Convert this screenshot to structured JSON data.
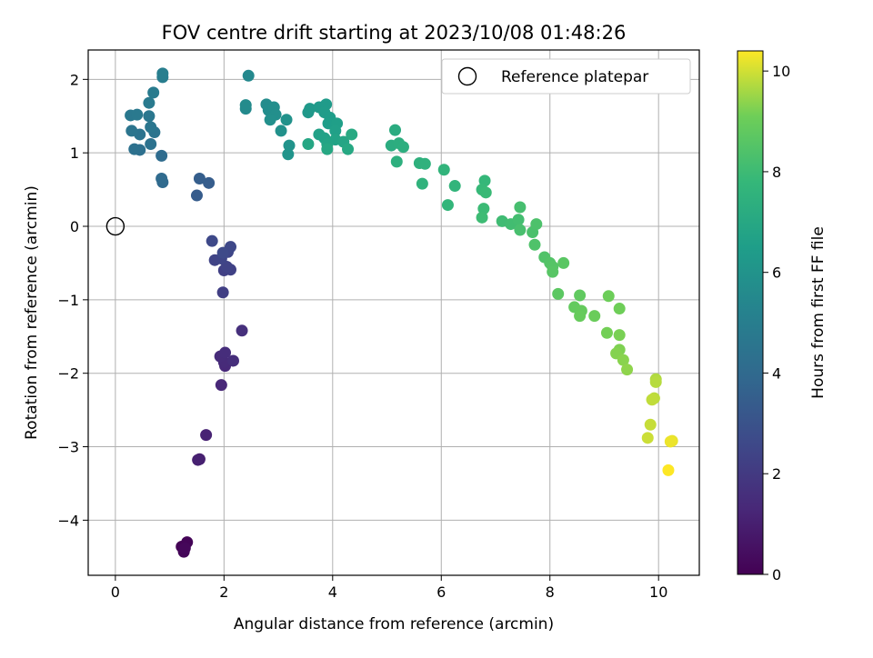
{
  "chart_data": {
    "type": "scatter",
    "title": "FOV centre drift starting at 2023/10/08 01:48:26",
    "xlabel": "Angular distance from reference (arcmin)",
    "ylabel": "Rotation from reference (arcmin)",
    "xlim": [
      -0.5,
      10.75
    ],
    "ylim": [
      -4.75,
      2.4
    ],
    "x_ticks": [
      0,
      2,
      4,
      6,
      8,
      10
    ],
    "y_ticks": [
      -4,
      -3,
      -2,
      -1,
      0,
      1,
      2
    ],
    "grid": true,
    "colormap": "viridis",
    "colorbar": {
      "label": "Hours from first FF file",
      "range": [
        0,
        10.4
      ],
      "ticks": [
        0,
        2,
        4,
        6,
        8,
        10
      ]
    },
    "legend": {
      "position": "top-right",
      "entries": [
        "Reference platepar"
      ]
    },
    "reference_point": {
      "x": 0,
      "y": 0
    },
    "points": [
      {
        "x": 1.22,
        "y": -4.36,
        "h": 0.05
      },
      {
        "x": 1.32,
        "y": -4.3,
        "h": 0.1
      },
      {
        "x": 1.26,
        "y": -4.43,
        "h": 0.15
      },
      {
        "x": 1.28,
        "y": -4.38,
        "h": 0.2
      },
      {
        "x": 1.55,
        "y": -3.17,
        "h": 1.0
      },
      {
        "x": 1.52,
        "y": -3.18,
        "h": 1.05
      },
      {
        "x": 1.67,
        "y": -2.84,
        "h": 1.15
      },
      {
        "x": 1.95,
        "y": -2.16,
        "h": 1.3
      },
      {
        "x": 2.02,
        "y": -1.9,
        "h": 1.35
      },
      {
        "x": 2.0,
        "y": -1.85,
        "h": 1.4
      },
      {
        "x": 1.93,
        "y": -1.77,
        "h": 1.45
      },
      {
        "x": 2.02,
        "y": -1.72,
        "h": 1.5
      },
      {
        "x": 2.17,
        "y": -1.83,
        "h": 1.55
      },
      {
        "x": 2.33,
        "y": -1.42,
        "h": 1.6
      },
      {
        "x": 1.98,
        "y": -0.9,
        "h": 2.2
      },
      {
        "x": 2.0,
        "y": -0.6,
        "h": 2.25
      },
      {
        "x": 2.12,
        "y": -0.59,
        "h": 2.3
      },
      {
        "x": 2.05,
        "y": -0.55,
        "h": 2.35
      },
      {
        "x": 1.83,
        "y": -0.46,
        "h": 2.4
      },
      {
        "x": 1.95,
        "y": -0.44,
        "h": 2.45
      },
      {
        "x": 2.07,
        "y": -0.35,
        "h": 2.5
      },
      {
        "x": 2.12,
        "y": -0.28,
        "h": 2.55
      },
      {
        "x": 1.78,
        "y": -0.2,
        "h": 2.6
      },
      {
        "x": 1.98,
        "y": -0.36,
        "h": 2.65
      },
      {
        "x": 1.5,
        "y": 0.42,
        "h": 3.4
      },
      {
        "x": 1.72,
        "y": 0.59,
        "h": 3.45
      },
      {
        "x": 1.55,
        "y": 0.65,
        "h": 3.5
      },
      {
        "x": 0.87,
        "y": 0.6,
        "h": 4.0
      },
      {
        "x": 0.85,
        "y": 0.65,
        "h": 4.05
      },
      {
        "x": 0.85,
        "y": 0.96,
        "h": 4.1
      },
      {
        "x": 0.45,
        "y": 1.04,
        "h": 4.3
      },
      {
        "x": 0.35,
        "y": 1.05,
        "h": 4.35
      },
      {
        "x": 0.65,
        "y": 1.12,
        "h": 4.4
      },
      {
        "x": 0.45,
        "y": 1.25,
        "h": 4.45
      },
      {
        "x": 0.72,
        "y": 1.28,
        "h": 4.5
      },
      {
        "x": 0.3,
        "y": 1.3,
        "h": 4.55
      },
      {
        "x": 0.65,
        "y": 1.35,
        "h": 4.6
      },
      {
        "x": 0.62,
        "y": 1.5,
        "h": 4.65
      },
      {
        "x": 0.28,
        "y": 1.51,
        "h": 4.7
      },
      {
        "x": 0.4,
        "y": 1.52,
        "h": 4.75
      },
      {
        "x": 0.62,
        "y": 1.68,
        "h": 4.8
      },
      {
        "x": 0.7,
        "y": 1.82,
        "h": 4.85
      },
      {
        "x": 0.87,
        "y": 2.03,
        "h": 4.95
      },
      {
        "x": 0.87,
        "y": 2.08,
        "h": 5.0
      },
      {
        "x": 2.45,
        "y": 2.05,
        "h": 5.5
      },
      {
        "x": 2.4,
        "y": 1.6,
        "h": 5.55
      },
      {
        "x": 2.4,
        "y": 1.65,
        "h": 5.6
      },
      {
        "x": 2.78,
        "y": 1.66,
        "h": 5.65
      },
      {
        "x": 2.82,
        "y": 1.58,
        "h": 5.7
      },
      {
        "x": 2.92,
        "y": 1.62,
        "h": 5.75
      },
      {
        "x": 2.95,
        "y": 1.52,
        "h": 5.8
      },
      {
        "x": 2.85,
        "y": 1.45,
        "h": 5.85
      },
      {
        "x": 3.05,
        "y": 1.3,
        "h": 5.9
      },
      {
        "x": 3.15,
        "y": 1.45,
        "h": 5.95
      },
      {
        "x": 3.2,
        "y": 1.1,
        "h": 6.0
      },
      {
        "x": 3.18,
        "y": 0.98,
        "h": 6.05
      },
      {
        "x": 3.55,
        "y": 1.55,
        "h": 6.2
      },
      {
        "x": 3.58,
        "y": 1.6,
        "h": 6.25
      },
      {
        "x": 3.75,
        "y": 1.62,
        "h": 6.3
      },
      {
        "x": 3.88,
        "y": 1.66,
        "h": 6.35
      },
      {
        "x": 3.85,
        "y": 1.55,
        "h": 6.4
      },
      {
        "x": 3.95,
        "y": 1.48,
        "h": 6.45
      },
      {
        "x": 3.92,
        "y": 1.4,
        "h": 6.5
      },
      {
        "x": 4.08,
        "y": 1.4,
        "h": 6.55
      },
      {
        "x": 4.05,
        "y": 1.3,
        "h": 6.6
      },
      {
        "x": 3.75,
        "y": 1.25,
        "h": 6.65
      },
      {
        "x": 3.85,
        "y": 1.2,
        "h": 6.7
      },
      {
        "x": 4.05,
        "y": 1.18,
        "h": 6.75
      },
      {
        "x": 3.9,
        "y": 1.12,
        "h": 6.8
      },
      {
        "x": 4.2,
        "y": 1.15,
        "h": 6.85
      },
      {
        "x": 3.55,
        "y": 1.12,
        "h": 6.9
      },
      {
        "x": 3.9,
        "y": 1.05,
        "h": 6.95
      },
      {
        "x": 4.28,
        "y": 1.05,
        "h": 7.0
      },
      {
        "x": 4.35,
        "y": 1.25,
        "h": 7.05
      },
      {
        "x": 5.15,
        "y": 1.31,
        "h": 7.2
      },
      {
        "x": 5.08,
        "y": 1.1,
        "h": 7.25
      },
      {
        "x": 5.22,
        "y": 1.13,
        "h": 7.3
      },
      {
        "x": 5.3,
        "y": 1.08,
        "h": 7.35
      },
      {
        "x": 5.18,
        "y": 0.88,
        "h": 7.4
      },
      {
        "x": 5.6,
        "y": 0.86,
        "h": 7.45
      },
      {
        "x": 5.7,
        "y": 0.85,
        "h": 7.5
      },
      {
        "x": 5.65,
        "y": 0.58,
        "h": 7.55
      },
      {
        "x": 6.05,
        "y": 0.77,
        "h": 7.6
      },
      {
        "x": 6.25,
        "y": 0.55,
        "h": 7.65
      },
      {
        "x": 6.12,
        "y": 0.29,
        "h": 7.7
      },
      {
        "x": 6.8,
        "y": 0.62,
        "h": 7.8
      },
      {
        "x": 6.75,
        "y": 0.5,
        "h": 7.85
      },
      {
        "x": 6.82,
        "y": 0.46,
        "h": 7.9
      },
      {
        "x": 6.78,
        "y": 0.24,
        "h": 7.95
      },
      {
        "x": 6.75,
        "y": 0.12,
        "h": 8.0
      },
      {
        "x": 7.12,
        "y": 0.07,
        "h": 8.05
      },
      {
        "x": 7.28,
        "y": 0.03,
        "h": 8.1
      },
      {
        "x": 7.42,
        "y": 0.09,
        "h": 8.15
      },
      {
        "x": 7.45,
        "y": 0.26,
        "h": 8.2
      },
      {
        "x": 7.45,
        "y": -0.05,
        "h": 8.25
      },
      {
        "x": 7.68,
        "y": -0.08,
        "h": 8.3
      },
      {
        "x": 7.75,
        "y": 0.03,
        "h": 8.35
      },
      {
        "x": 7.72,
        "y": -0.25,
        "h": 8.4
      },
      {
        "x": 7.9,
        "y": -0.42,
        "h": 8.45
      },
      {
        "x": 8.0,
        "y": -0.5,
        "h": 8.5
      },
      {
        "x": 8.05,
        "y": -0.55,
        "h": 8.55
      },
      {
        "x": 8.05,
        "y": -0.62,
        "h": 8.6
      },
      {
        "x": 8.25,
        "y": -0.5,
        "h": 8.65
      },
      {
        "x": 8.15,
        "y": -0.92,
        "h": 8.7
      },
      {
        "x": 8.55,
        "y": -0.94,
        "h": 8.8
      },
      {
        "x": 8.45,
        "y": -1.1,
        "h": 8.85
      },
      {
        "x": 8.58,
        "y": -1.15,
        "h": 8.9
      },
      {
        "x": 8.55,
        "y": -1.22,
        "h": 8.95
      },
      {
        "x": 8.82,
        "y": -1.22,
        "h": 9.0
      },
      {
        "x": 9.08,
        "y": -0.95,
        "h": 9.05
      },
      {
        "x": 9.28,
        "y": -1.12,
        "h": 9.1
      },
      {
        "x": 9.05,
        "y": -1.45,
        "h": 9.15
      },
      {
        "x": 9.28,
        "y": -1.48,
        "h": 9.2
      },
      {
        "x": 9.28,
        "y": -1.68,
        "h": 9.25
      },
      {
        "x": 9.22,
        "y": -1.73,
        "h": 9.3
      },
      {
        "x": 9.35,
        "y": -1.82,
        "h": 9.35
      },
      {
        "x": 9.42,
        "y": -1.95,
        "h": 9.4
      },
      {
        "x": 9.95,
        "y": -2.08,
        "h": 9.7
      },
      {
        "x": 9.95,
        "y": -2.12,
        "h": 9.75
      },
      {
        "x": 9.92,
        "y": -2.34,
        "h": 9.8
      },
      {
        "x": 9.88,
        "y": -2.36,
        "h": 9.85
      },
      {
        "x": 9.85,
        "y": -2.7,
        "h": 9.9
      },
      {
        "x": 9.8,
        "y": -2.88,
        "h": 9.95
      },
      {
        "x": 10.25,
        "y": -2.92,
        "h": 10.2
      },
      {
        "x": 10.22,
        "y": -2.93,
        "h": 10.25
      },
      {
        "x": 10.18,
        "y": -3.32,
        "h": 10.4
      }
    ]
  }
}
